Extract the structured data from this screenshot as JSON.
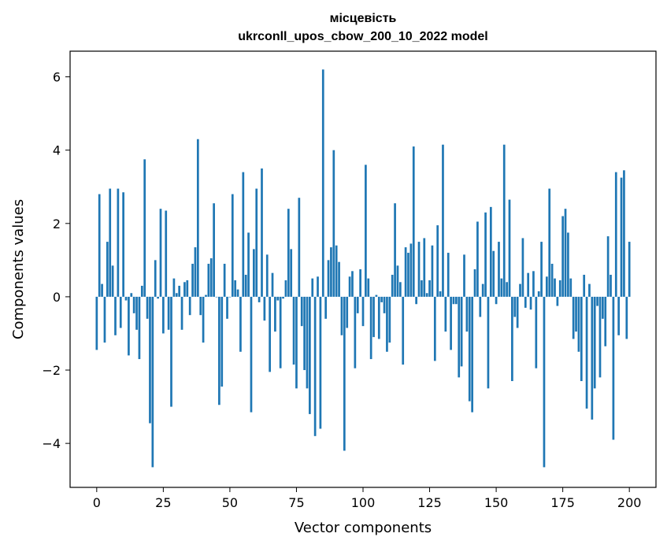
{
  "chart_data": {
    "type": "bar",
    "title_line1": "місцевість",
    "title_line2": "ukrconll_upos_cbow_200_10_2022 model",
    "xlabel": "Vector components",
    "ylabel": "Components values",
    "xlim": [
      -10,
      210
    ],
    "ylim": [
      -5.2,
      6.7
    ],
    "xticks": [
      0,
      25,
      50,
      75,
      100,
      125,
      150,
      175,
      200
    ],
    "xtick_labels": [
      "0",
      "25",
      "50",
      "75",
      "100",
      "125",
      "150",
      "175",
      "200"
    ],
    "yticks": [
      -4,
      -2,
      0,
      2,
      4,
      6
    ],
    "ytick_labels": [
      "−4",
      "−2",
      "0",
      "2",
      "4",
      "6"
    ],
    "bar_color": "#1f77b4",
    "grid": false,
    "values": [
      -1.45,
      2.8,
      0.35,
      -1.25,
      1.5,
      2.95,
      0.85,
      -1.05,
      2.95,
      -0.85,
      2.85,
      -0.1,
      -1.6,
      0.1,
      -0.45,
      -0.9,
      -1.7,
      0.3,
      3.75,
      -0.6,
      -3.45,
      -4.65,
      1.0,
      -0.05,
      2.4,
      -1.0,
      2.35,
      -0.9,
      -3.0,
      0.5,
      0.1,
      0.3,
      -0.9,
      0.4,
      0.45,
      -0.5,
      0.9,
      1.35,
      4.3,
      -0.5,
      -1.25,
      0.05,
      0.9,
      1.05,
      2.55,
      0.0,
      -2.95,
      -2.45,
      0.9,
      -0.6,
      0.0,
      2.8,
      0.45,
      0.2,
      -1.5,
      3.4,
      0.6,
      1.75,
      -3.15,
      1.3,
      2.95,
      -0.15,
      3.5,
      -0.65,
      1.15,
      -2.05,
      0.65,
      -0.95,
      -0.1,
      -1.95,
      -0.05,
      0.45,
      2.4,
      1.3,
      -1.85,
      -2.5,
      2.7,
      -0.8,
      -2.0,
      -2.5,
      -3.2,
      0.5,
      -3.8,
      0.55,
      -3.6,
      6.2,
      -0.6,
      1.0,
      1.35,
      4.0,
      1.4,
      0.95,
      -1.05,
      -4.2,
      -0.85,
      0.55,
      0.7,
      -1.95,
      -0.45,
      0.75,
      -0.8,
      3.6,
      0.5,
      -1.7,
      -1.1,
      0.05,
      -1.15,
      -0.15,
      -0.45,
      -1.5,
      -1.25,
      0.6,
      2.55,
      0.85,
      0.4,
      -1.85,
      1.35,
      1.2,
      1.45,
      4.1,
      -0.2,
      1.5,
      0.45,
      1.6,
      0.1,
      0.45,
      1.4,
      -1.75,
      1.95,
      0.15,
      4.15,
      -0.95,
      1.2,
      -1.45,
      -0.2,
      -0.2,
      -2.2,
      -1.9,
      1.15,
      -0.95,
      -2.85,
      -3.15,
      0.75,
      2.05,
      -0.55,
      0.35,
      2.3,
      -2.5,
      2.45,
      1.25,
      -0.2,
      1.5,
      0.5,
      4.15,
      0.4,
      2.65,
      -2.3,
      -0.55,
      -0.85,
      0.35,
      1.6,
      -0.3,
      0.65,
      -0.35,
      0.7,
      -1.95,
      0.15,
      1.5,
      -4.65,
      0.55,
      2.95,
      0.9,
      0.5,
      -0.25,
      0.45,
      2.2,
      2.4,
      1.75,
      0.5,
      -1.15,
      -0.95,
      -1.5,
      -2.3,
      0.6,
      -3.05,
      0.35,
      -3.35,
      -2.5,
      -0.25,
      -2.2,
      -0.6,
      -1.35,
      1.65,
      0.6,
      -3.9,
      3.4,
      -1.05,
      3.25,
      3.45,
      -1.15,
      1.5
    ]
  }
}
